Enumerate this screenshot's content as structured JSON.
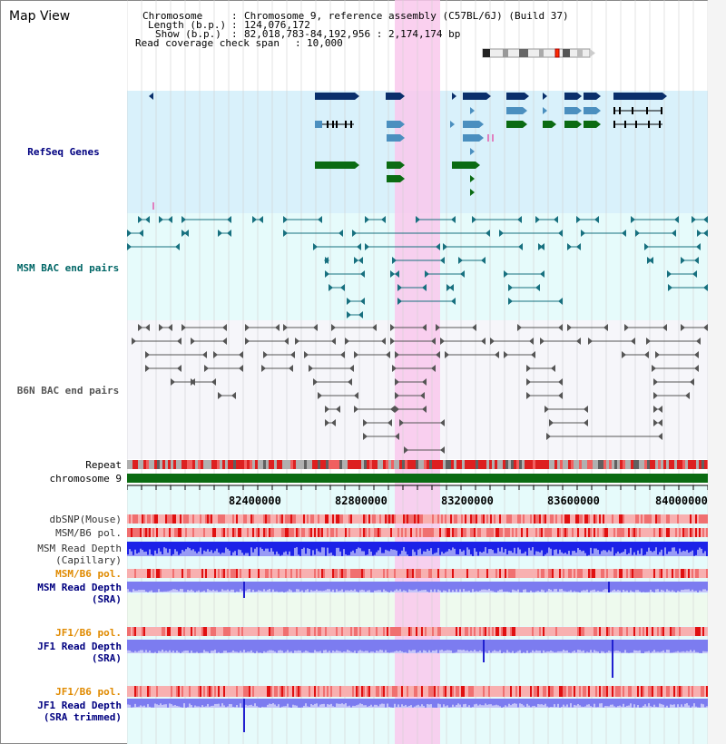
{
  "header": {
    "title": "Map View",
    "chromosome_label": "Chromosome",
    "chromosome_value": "Chromosome 9, reference assembly (C57BL/6J) (Build 37)",
    "length_label": "Length (b.p.)",
    "length_value": "124,076,172",
    "show_label": "Show (b.p.)",
    "show_value": "82,018,783-84,192,956 : 2,174,174 bp",
    "span_label": "Read coverage check span",
    "span_value": "10,000"
  },
  "tracks": {
    "refseq": "RefSeq Genes",
    "msm_bac": "MSM BAC end pairs",
    "b6n_bac": "B6N BAC end pairs",
    "repeat": "Repeat",
    "chromosome": "chromosome 9",
    "dbsnp": "dbSNP(Mouse)",
    "msm_b6_pol_1": "MSM/B6 pol.",
    "msm_read_depth_cap_1": "MSM Read Depth",
    "msm_read_depth_cap_2": "(Capillary)",
    "msm_b6_pol_2": "MSM/B6 pol.",
    "msm_read_depth_sra_1": "MSM Read Depth",
    "msm_read_depth_sra_2": "(SRA)",
    "jf1_b6_pol_1": "JF1/B6 pol.",
    "jf1_read_depth_sra_1": "JF1 Read Depth",
    "jf1_read_depth_sra_2": "(SRA)",
    "jf1_b6_pol_2": "JF1/B6 pol.",
    "jf1_read_depth_trim_1": "JF1 Read Depth",
    "jf1_read_depth_trim_2": "(SRA trimmed)"
  },
  "axis": {
    "ticks": [
      "82400000",
      "82800000",
      "83200000",
      "83600000",
      "84000000"
    ]
  },
  "colors": {
    "refseq_bg": "#d9f1fb",
    "msm_bg": "#e6fbfb",
    "b6n_bg": "#f6f6fa",
    "highlight": "#f9c8ec",
    "gene_dark": "#0a2f6b",
    "gene_mid": "#4b8fbf",
    "gene_green": "#0b6b12",
    "msm_line": "#17707f",
    "b6n_line": "#555555",
    "depth_blue": "#1c22e8",
    "depth_violet": "#7c7cf0",
    "label_navy": "#000080",
    "label_orange": "#e08a00",
    "label_teal": "#006666"
  }
}
